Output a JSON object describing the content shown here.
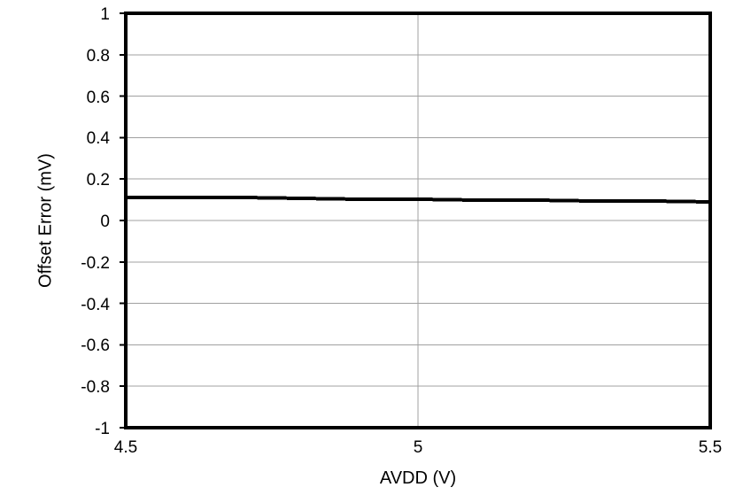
{
  "colors": {
    "background": "#ffffff",
    "axis": "#000000",
    "gridline": "#a0a0a0",
    "series": "#000000",
    "label": "#000000"
  },
  "chart_data": {
    "type": "line",
    "title": "",
    "xlabel": "AVDD (V)",
    "ylabel": "Offset Error (mV)",
    "xlim": [
      4.5,
      5.5
    ],
    "ylim": [
      -1,
      1
    ],
    "grid_on": true,
    "legend": "none",
    "x_ticks": {
      "values": [
        4.5,
        5,
        5.5
      ],
      "labels": [
        "4.5",
        "5",
        "5.5"
      ]
    },
    "y_ticks": {
      "values": [
        1,
        0.8,
        0.6,
        0.4,
        0.2,
        0,
        -0.2,
        -0.4,
        -0.6,
        -0.8,
        -1
      ],
      "labels": [
        "1",
        "0.8",
        "0.6",
        "0.4",
        "0.2",
        "0",
        "-0.2",
        "-0.4",
        "-0.6",
        "-0.8",
        "-1"
      ]
    },
    "grid": {
      "horizontal": [
        0.8,
        0.6,
        0.4,
        0.2,
        0,
        -0.2,
        -0.4,
        -0.6,
        -0.8
      ],
      "vertical": [
        5
      ]
    },
    "series": [
      {
        "name": "offset_error",
        "color": "#000000",
        "stroke_width": 4,
        "x": [
          4.5,
          4.6,
          4.7,
          4.8,
          4.9,
          5.0,
          5.1,
          5.2,
          5.3,
          5.4,
          5.5
        ],
        "y": [
          0.113,
          0.111,
          0.109,
          0.107,
          0.104,
          0.102,
          0.1,
          0.097,
          0.095,
          0.092,
          0.09
        ]
      }
    ]
  }
}
